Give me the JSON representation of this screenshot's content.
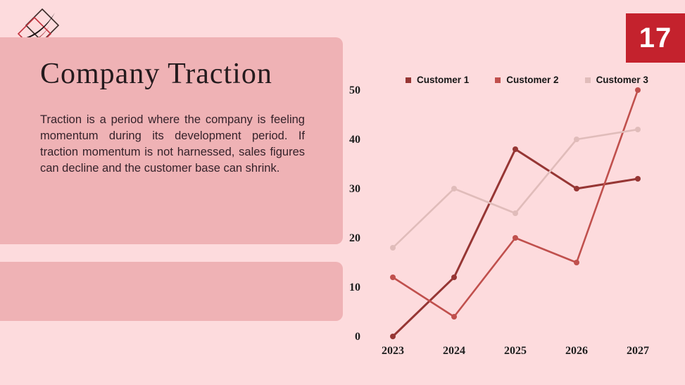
{
  "page": {
    "number": "17",
    "background_color": "#fddbdd",
    "panel_color": "#efb2b5",
    "number_box_color": "#c4222d"
  },
  "title": "Company Traction",
  "body_text": "Traction is a period where the company is feeling momentum during its development period. If traction momentum is not harnessed, sales figures can decline and the customer base can shrink.",
  "chart_data": {
    "type": "line",
    "x": [
      "2023",
      "2024",
      "2025",
      "2026",
      "2027"
    ],
    "series": [
      {
        "name": "Customer 1",
        "color": "#963634",
        "values": [
          0,
          12,
          38,
          30,
          32
        ]
      },
      {
        "name": "Customer 2",
        "color": "#c0504d",
        "values": [
          12,
          4,
          20,
          15,
          50
        ]
      },
      {
        "name": "Customer 3",
        "color": "#e0bcba",
        "values": [
          18,
          30,
          25,
          40,
          42
        ]
      }
    ],
    "ylim": [
      0,
      50
    ],
    "yticks": [
      0,
      10,
      20,
      30,
      40,
      50
    ],
    "grid": false,
    "axes_lines": false,
    "legend_position": "top",
    "marker": "circle"
  }
}
